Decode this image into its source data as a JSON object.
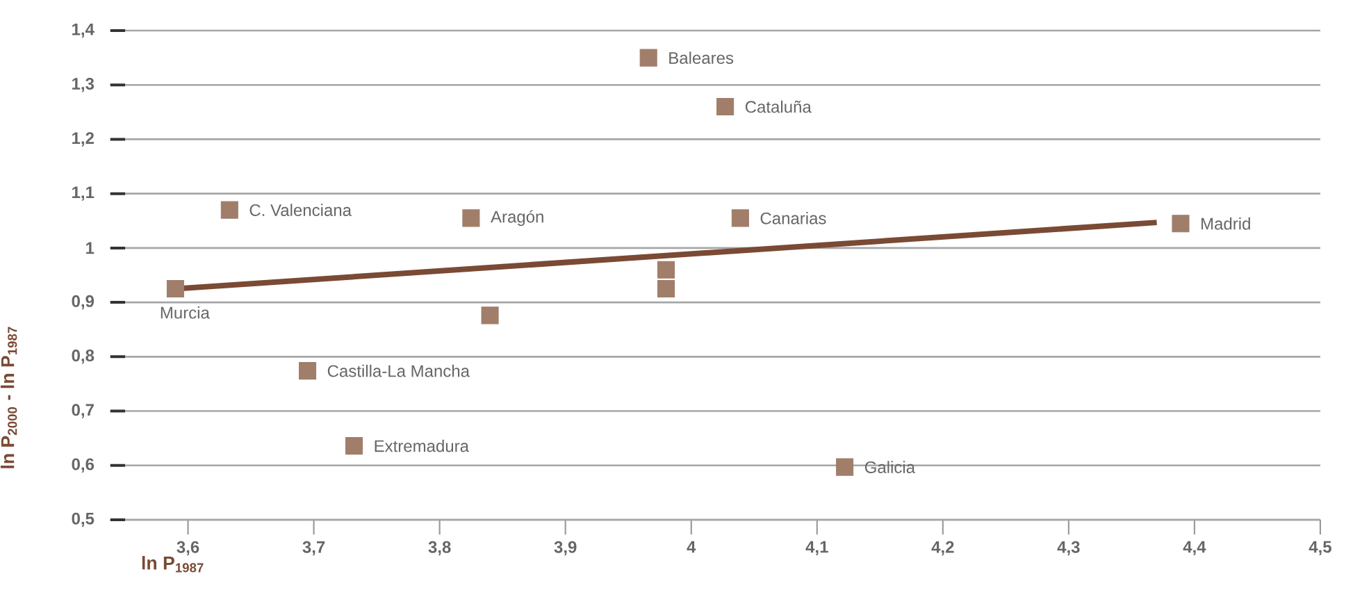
{
  "chart_data": {
    "type": "scatter",
    "xlabel": "ln P$_{1987}$",
    "ylabel": "ln P$_{2000}$ - ln P$_{1987}$",
    "xlim": [
      3.55,
      4.5
    ],
    "ylim": [
      0.5,
      1.4
    ],
    "xticks": [
      {
        "value": 3.6,
        "label": "3,6"
      },
      {
        "value": 3.7,
        "label": "3,7"
      },
      {
        "value": 3.8,
        "label": "3,8"
      },
      {
        "value": 3.9,
        "label": "3,9"
      },
      4,
      {
        "value": 4.1,
        "label": "4,1"
      },
      {
        "value": 4.2,
        "label": "4,2"
      },
      {
        "value": 4.3,
        "label": "4,3"
      },
      {
        "value": 4.4,
        "label": "4,4"
      },
      {
        "value": 4.5,
        "label": "4,5"
      }
    ],
    "yticks": [
      {
        "value": 0.5,
        "label": "0,5"
      },
      {
        "value": 0.6,
        "label": "0,6"
      },
      {
        "value": 0.7,
        "label": "0,7"
      },
      {
        "value": 0.8,
        "label": "0,8"
      },
      {
        "value": 0.9,
        "label": "0,9"
      },
      1,
      {
        "value": 1.1,
        "label": "1,1"
      },
      {
        "value": 1.2,
        "label": "1,2"
      },
      {
        "value": 1.3,
        "label": "1,3"
      },
      {
        "value": 1.4,
        "label": "1,4"
      }
    ],
    "grid": "y",
    "series": [
      {
        "marker": "square",
        "color": "#a07e6a",
        "x": [
          3.59,
          3.633,
          3.825,
          3.84,
          3.695,
          3.732,
          3.966,
          4.027,
          4.039,
          3.98,
          3.98,
          4.122,
          4.389
        ],
        "values": [
          0.925,
          1.07,
          1.055,
          0.876,
          0.774,
          0.636,
          1.35,
          1.26,
          1.055,
          0.96,
          0.925,
          0.597,
          1.045
        ]
      },
      {
        "type": "line",
        "color": "#7a4a35",
        "x": [
          3.59,
          4.37
        ],
        "values": [
          0.925,
          1.047
        ]
      }
    ],
    "annotations": [
      {
        "text": "Murcia",
        "x": 3.59,
        "y": 0.925
      },
      {
        "text": "C. Valenciana",
        "x": 3.633,
        "y": 1.07
      },
      {
        "text": "Aragón",
        "x": 3.825,
        "y": 1.055
      },
      {
        "text": "Castilla-La Mancha",
        "x": 3.695,
        "y": 0.774
      },
      {
        "text": "Extremadura",
        "x": 3.732,
        "y": 0.636
      },
      {
        "text": "Baleares",
        "x": 3.966,
        "y": 1.35
      },
      {
        "text": "Cataluña",
        "x": 4.027,
        "y": 1.26
      },
      {
        "text": "Canarias",
        "x": 4.039,
        "y": 1.055
      },
      {
        "text": "Galicia",
        "x": 4.122,
        "y": 0.597
      },
      {
        "text": "Madrid",
        "x": 4.389,
        "y": 1.045
      }
    ]
  }
}
